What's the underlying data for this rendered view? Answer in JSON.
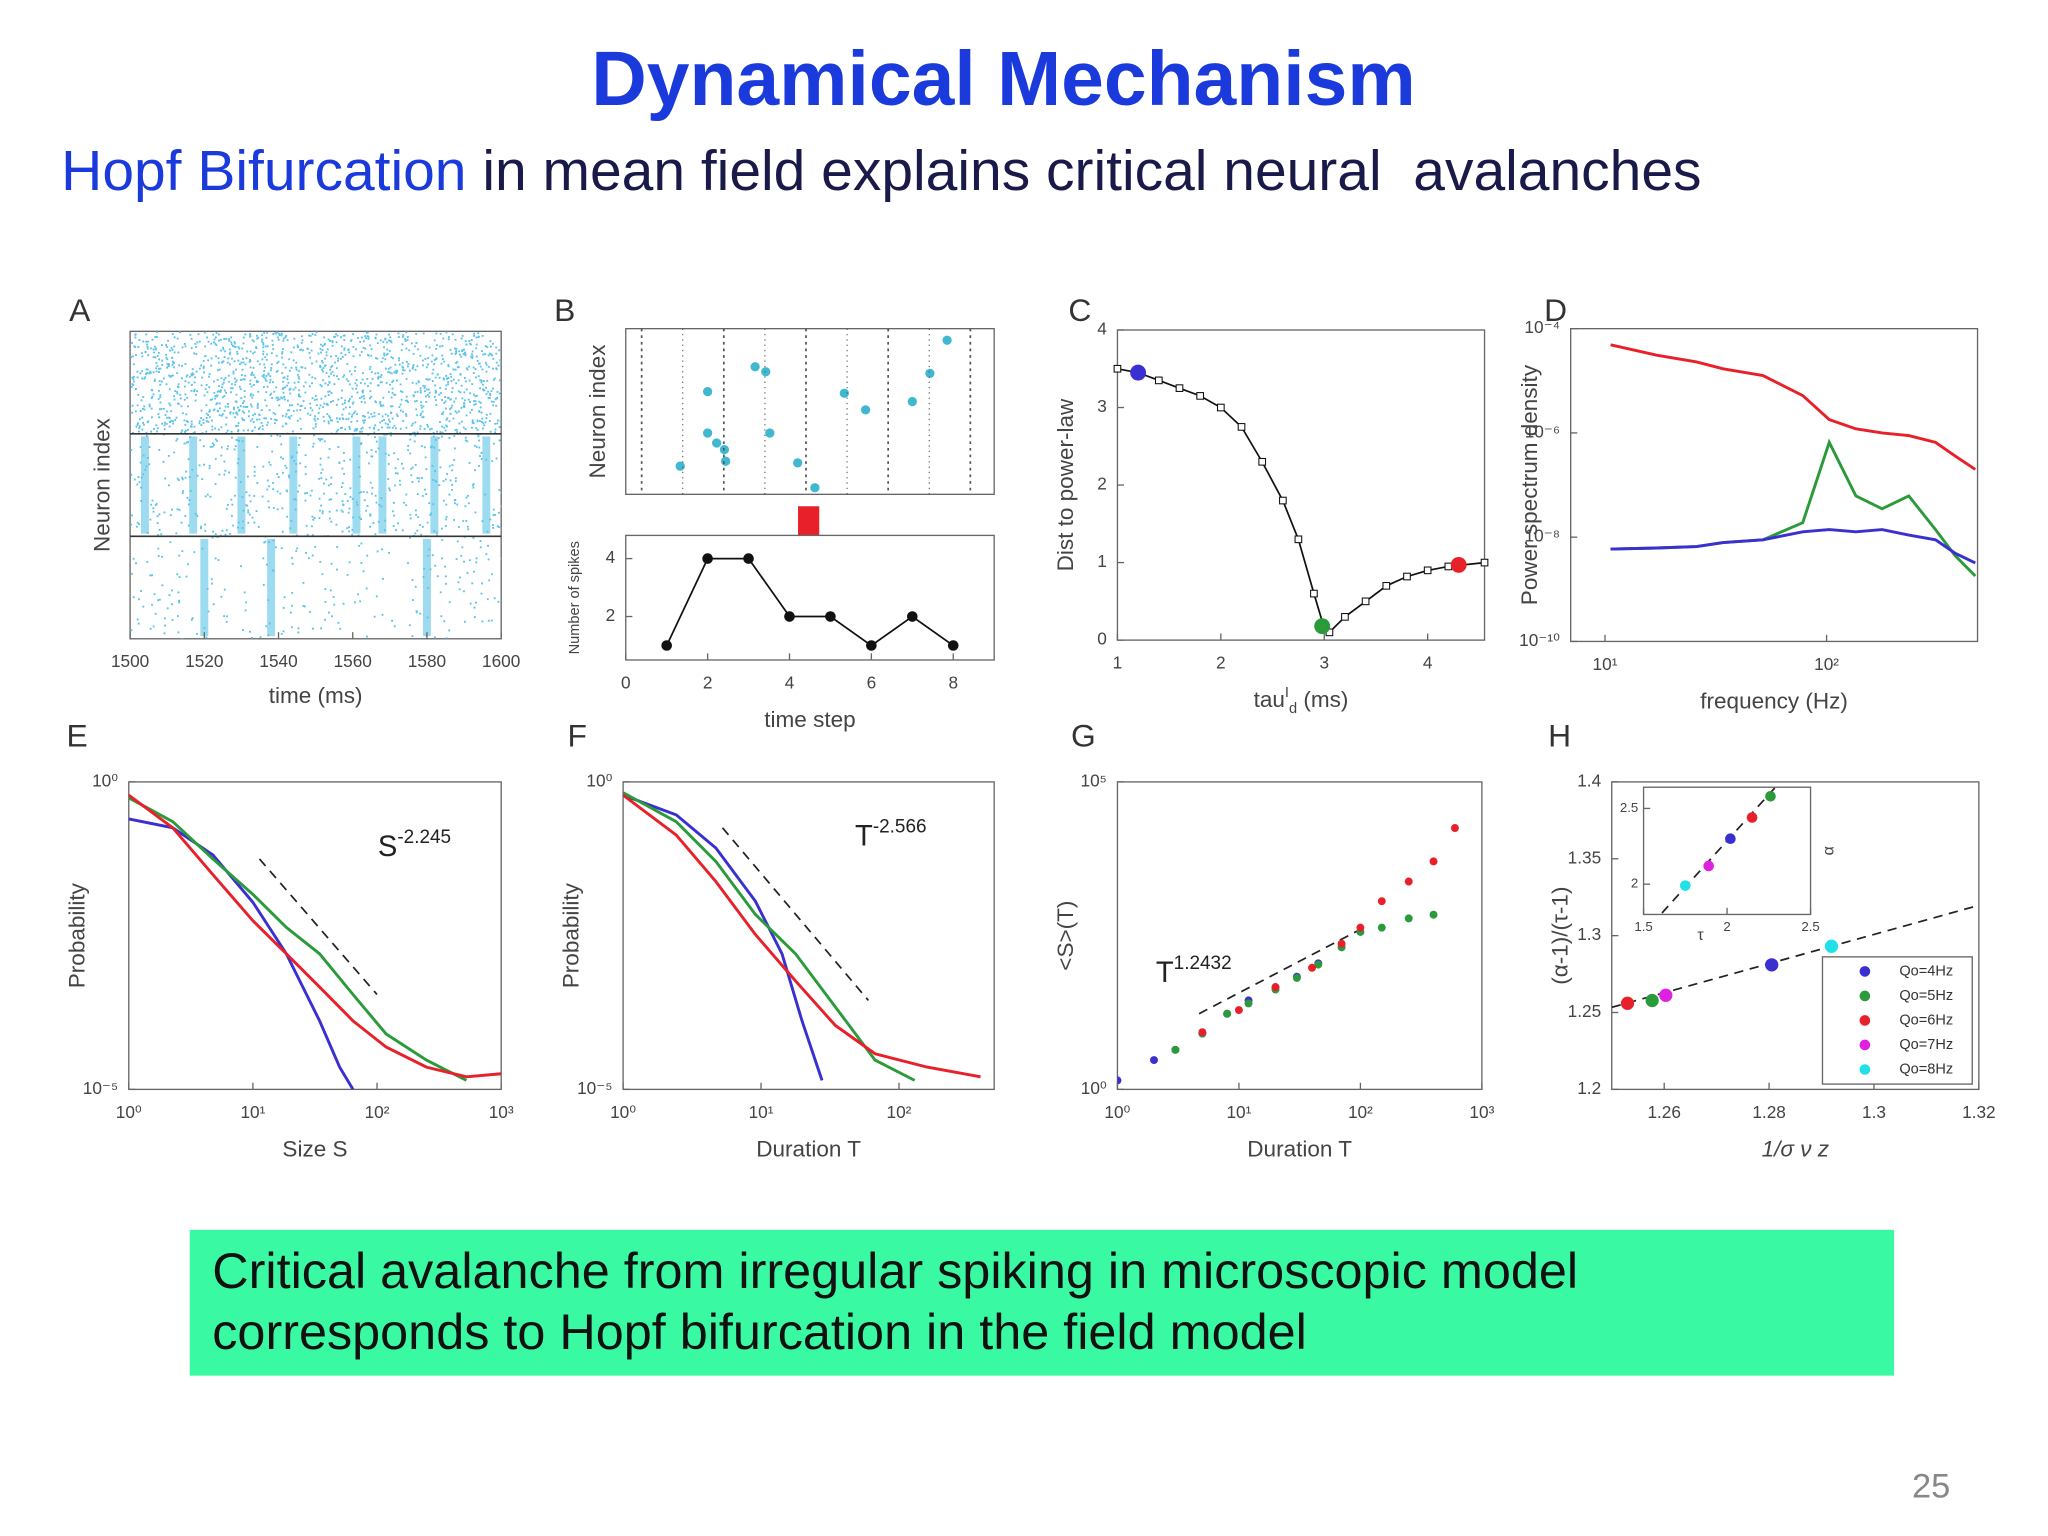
{
  "title": "Dynamical Mechanism",
  "subtitle": {
    "highlight": "Hopf Bifurcation",
    "text": " in mean field explains critical neural  avalanches"
  },
  "caption": [
    "Critical avalanche from irregular spiking in microscopic model",
    "corresponds to Hopf bifurcation in the field model"
  ],
  "page_number": "25",
  "chart_data": [
    {
      "type": "raster",
      "label": "A",
      "xlabel": "time (ms)",
      "ylabel": "Neuron index",
      "color": "#5bc3e8",
      "xlim": [
        1500,
        1600
      ],
      "xticks": [
        1500,
        1520,
        1540,
        1560,
        1580,
        1600
      ],
      "rows": [
        {
          "bursts": []
        },
        {
          "bursts": [
            1504,
            1517,
            1530,
            1544,
            1561,
            1568,
            1582,
            1596
          ]
        },
        {
          "bursts": [
            1520,
            1538,
            1580
          ]
        }
      ]
    },
    {
      "type": "scatter",
      "label": "B",
      "ylabel": "Neuron index",
      "xlim": [
        0,
        9
      ],
      "ylim": [
        0,
        1
      ],
      "series": [
        {
          "color": "#3fb8d0",
          "x": [
            1.33,
            2.0,
            2.0,
            2.22,
            2.41,
            2.44,
            3.16,
            3.42,
            3.52,
            4.2,
            4.62,
            5.34,
            5.86,
            7.0,
            7.43,
            7.85
          ],
          "values": [
            0.17,
            0.62,
            0.37,
            0.31,
            0.27,
            0.2,
            0.77,
            0.74,
            0.37,
            0.19,
            0.04,
            0.61,
            0.51,
            0.56,
            0.73,
            0.93
          ]
        }
      ]
    },
    {
      "type": "line",
      "xlabel": "time step",
      "ylabel": "Number of spikes",
      "markers": "circle",
      "xlim": [
        0,
        9
      ],
      "ylim": [
        0.5,
        4.8
      ],
      "xticks": [
        0,
        2,
        4,
        6,
        8
      ],
      "yticks": [
        2,
        4
      ],
      "series": [
        {
          "color": "#111111",
          "x": [
            1,
            2,
            3,
            4,
            5,
            6,
            7,
            8
          ],
          "values": [
            1,
            4,
            4,
            2,
            2,
            1,
            2,
            1
          ]
        }
      ]
    },
    {
      "type": "line",
      "label": "C",
      "xlabel": {
        "base": "tau",
        "sup": "I",
        "sub": "d",
        "unit": " (ms)"
      },
      "ylabel": "Dist to power-law",
      "markers": "square",
      "xlim": [
        1,
        4.55
      ],
      "ylim": [
        0,
        4
      ],
      "xticks": [
        1,
        2,
        3,
        4
      ],
      "yticks": [
        0,
        1,
        2,
        3,
        4
      ],
      "series": [
        {
          "color": "#111111",
          "x": [
            1,
            1.2,
            1.4,
            1.6,
            1.8,
            2.0,
            2.2,
            2.4,
            2.6,
            2.75,
            2.9,
            3.0,
            3.05,
            3.2,
            3.4,
            3.6,
            3.8,
            4.0,
            4.2,
            4.55
          ],
          "values": [
            3.5,
            3.45,
            3.35,
            3.25,
            3.15,
            3.0,
            2.75,
            2.3,
            1.8,
            1.3,
            0.6,
            0.15,
            0.1,
            0.3,
            0.5,
            0.7,
            0.82,
            0.9,
            0.95,
            1.0
          ]
        }
      ],
      "points": [
        {
          "color": "#3a2fd0",
          "x": 1.2,
          "value": 3.45
        },
        {
          "color": "#2a9a3a",
          "x": 2.98,
          "value": 0.18
        },
        {
          "color": "#e8202a",
          "x": 4.3,
          "value": 0.97
        }
      ]
    },
    {
      "type": "line",
      "label": "D",
      "xlabel": "frequency (Hz)",
      "ylabel": "Power spectrum density",
      "xscale": "log",
      "yscale": "log",
      "xlim": [
        7,
        480
      ],
      "ylim": [
        1e-10,
        0.0001
      ],
      "xticks": [
        {
          "value": 10,
          "label": "10¹"
        },
        {
          "value": 100,
          "label": "10²"
        }
      ],
      "yticks": [
        {
          "value": 1e-10,
          "label": "10⁻¹⁰"
        },
        {
          "value": 1e-08,
          "label": "10⁻⁸"
        },
        {
          "value": 1e-06,
          "label": "10⁻⁶"
        },
        {
          "value": 0.0001,
          "label": "10⁻⁴"
        }
      ],
      "series": [
        {
          "color": "#e8202a",
          "x": [
            10.6,
            17.1,
            25.9,
            34.1,
            51.6,
            78,
            102.8,
            135.5,
            178,
            235,
            310,
            381,
            469
          ],
          "values": [
            4.9e-05,
            3.1e-05,
            2.3e-05,
            1.7e-05,
            1.26e-05,
            5.2e-06,
            1.8e-06,
            1.2e-06,
            1e-06,
            8.9e-07,
            6.6e-07,
            3.6e-07,
            2e-07
          ]
        },
        {
          "color": "#2a9a3a",
          "x": [
            10.6,
            17.1,
            25.9,
            34.1,
            51.6,
            78,
            102.8,
            135.5,
            178,
            235,
            310,
            381,
            469
          ],
          "values": [
            5.9e-09,
            6.2e-09,
            6.6e-09,
            7.9e-09,
            8.9e-09,
            1.9e-08,
            6.6e-07,
            6.2e-08,
            3.5e-08,
            6.2e-08,
            1.4e-08,
            4.4e-09,
            1.8e-09
          ]
        },
        {
          "color": "#3a2fd0",
          "x": [
            10.6,
            17.1,
            25.9,
            34.1,
            51.6,
            78,
            102.8,
            135.5,
            178,
            235,
            310,
            381,
            469
          ],
          "values": [
            5.9e-09,
            6.2e-09,
            6.6e-09,
            7.9e-09,
            8.9e-09,
            1.27e-08,
            1.4e-08,
            1.27e-08,
            1.4e-08,
            1.1e-08,
            8.9e-09,
            4.9e-09,
            3.2e-09
          ]
        }
      ]
    },
    {
      "type": "line",
      "label": "E",
      "xlabel": "Size S",
      "ylabel": "Probability",
      "xscale": "log",
      "yscale": "log",
      "xlim": [
        1,
        1000
      ],
      "ylim": [
        1e-05,
        1
      ],
      "xticks": [
        {
          "value": 1,
          "label": "10⁰"
        },
        {
          "value": 10,
          "label": "10¹"
        },
        {
          "value": 100,
          "label": "10²"
        },
        {
          "value": 1000,
          "label": "10³"
        }
      ],
      "yticks": [
        {
          "value": 1e-05,
          "label": "10⁻⁵"
        },
        {
          "value": 1,
          "label": "10⁰"
        }
      ],
      "annotation": {
        "base": "S",
        "sup": "-2.245"
      },
      "fit": {
        "x": [
          11.3,
          100
        ],
        "values": [
          0.056,
          0.00035
        ]
      },
      "series": [
        {
          "color": "#3a2fd0",
          "x": [
            1,
            2.26,
            4.76,
            10,
            18.6,
            34.5,
            50,
            64
          ],
          "values": [
            0.25,
            0.18,
            0.065,
            0.011,
            0.0016,
            0.00013,
            2.3e-05,
            1e-05
          ]
        },
        {
          "color": "#2a9a3a",
          "x": [
            1,
            2.26,
            4.76,
            10,
            18.6,
            34.5,
            64,
            118,
            250,
            525
          ],
          "values": [
            0.55,
            0.226,
            0.056,
            0.0148,
            0.0043,
            0.0016,
            0.00035,
            8e-05,
            3e-05,
            1.4e-05
          ]
        },
        {
          "color": "#e8202a",
          "x": [
            1,
            2.26,
            4.76,
            10,
            18.6,
            34.5,
            64,
            118,
            250,
            525,
            1000
          ],
          "values": [
            0.61,
            0.18,
            0.031,
            0.0055,
            0.0016,
            0.00046,
            0.00013,
            4.9e-05,
            2.3e-05,
            1.6e-05,
            1.8e-05
          ]
        }
      ]
    },
    {
      "type": "line",
      "label": "F",
      "xlabel": "Duration T",
      "ylabel": "Probability",
      "xscale": "log",
      "yscale": "log",
      "xlim": [
        1,
        490
      ],
      "ylim": [
        1e-05,
        1
      ],
      "xticks": [
        {
          "value": 1,
          "label": "10⁰"
        },
        {
          "value": 10,
          "label": "10¹"
        },
        {
          "value": 100,
          "label": "10²"
        }
      ],
      "yticks": [
        {
          "value": 1e-05,
          "label": "10⁻⁵"
        },
        {
          "value": 1,
          "label": "10⁰"
        }
      ],
      "annotation": {
        "base": "T",
        "sup": "-2.566"
      },
      "fit": {
        "x": [
          5.25,
          60
        ],
        "values": [
          0.18,
          0.00028
        ]
      },
      "series": [
        {
          "color": "#3a2fd0",
          "x": [
            1,
            2.43,
            4.7,
            9.1,
            14.2,
            19.8,
            27.7
          ],
          "values": [
            0.61,
            0.29,
            0.084,
            0.0115,
            0.0016,
            0.00013,
            1.4e-05
          ]
        },
        {
          "color": "#2a9a3a",
          "x": [
            1,
            2.43,
            4.7,
            9.1,
            17.8,
            34.5,
            67,
            130
          ],
          "values": [
            0.67,
            0.226,
            0.051,
            0.007,
            0.0016,
            0.00022,
            3e-05,
            1.4e-05
          ]
        },
        {
          "color": "#e8202a",
          "x": [
            1,
            2.43,
            4.7,
            9.1,
            17.8,
            34.5,
            67,
            160,
            390
          ],
          "values": [
            0.61,
            0.137,
            0.024,
            0.0033,
            0.00058,
            0.00011,
            3.8e-05,
            2.3e-05,
            1.6e-05
          ]
        }
      ]
    },
    {
      "type": "scatter",
      "label": "G",
      "xlabel": "Duration T",
      "ylabel": "<S>(T)",
      "xscale": "log",
      "yscale": "log",
      "xlim": [
        1,
        1000
      ],
      "ylim": [
        1,
        100000
      ],
      "xticks": [
        {
          "value": 1,
          "label": "10⁰"
        },
        {
          "value": 10,
          "label": "10¹"
        },
        {
          "value": 100,
          "label": "10²"
        },
        {
          "value": 1000,
          "label": "10³"
        }
      ],
      "yticks": [
        {
          "value": 1,
          "label": "10⁰"
        },
        {
          "value": 100000,
          "label": "10⁵"
        }
      ],
      "annotation": {
        "base": "T",
        "sup": "1.2432"
      },
      "fit": {
        "x": [
          4.7,
          107
        ],
        "values": [
          17,
          427
        ]
      },
      "series": [
        {
          "color": "#3a2fd0",
          "x": [
            1,
            2,
            3,
            5,
            8,
            12,
            20,
            30,
            45
          ],
          "values": [
            1.4,
            3.0,
            4.4,
            8.1,
            17,
            28,
            46,
            68,
            112
          ]
        },
        {
          "color": "#2a9a3a",
          "x": [
            3,
            5,
            8,
            12,
            20,
            30,
            45,
            70,
            100,
            150,
            250,
            400
          ],
          "values": [
            4.4,
            8.1,
            17,
            25,
            42,
            65,
            107,
            204,
            363,
            427,
            603,
            692
          ]
        },
        {
          "color": "#e8202a",
          "x": [
            5,
            10,
            20,
            40,
            70,
            100,
            150,
            250,
            400,
            600
          ],
          "values": [
            8.5,
            19.5,
            46,
            95,
            234,
            427,
            1150,
            2400,
            5100,
            17800
          ]
        }
      ]
    },
    {
      "type": "scatter",
      "label": "H",
      "xlabel": "1/σ ν z",
      "ylabel": "(α-1)/(τ-1)",
      "legend": "lower right",
      "xlim": [
        1.25,
        1.32
      ],
      "ylim": [
        1.2,
        1.4
      ],
      "xticks": [
        1.26,
        1.28,
        1.3,
        1.32
      ],
      "yticks": [
        1.2,
        1.25,
        1.3,
        1.35,
        1.4
      ],
      "fit": {
        "x": [
          1.25,
          1.32
        ],
        "values": [
          1.2534,
          1.3197
        ]
      },
      "series": [
        {
          "name": "Qo=4Hz",
          "color": "#3a2fd0",
          "x": [
            1.2805
          ],
          "values": [
            1.281
          ]
        },
        {
          "name": "Qo=5Hz",
          "color": "#2a9a3a",
          "x": [
            1.2577
          ],
          "values": [
            1.2578
          ]
        },
        {
          "name": "Qo=6Hz",
          "color": "#e8202a",
          "x": [
            1.253
          ],
          "values": [
            1.256
          ]
        },
        {
          "name": "Qo=7Hz",
          "color": "#e020e0",
          "x": [
            1.2603
          ],
          "values": [
            1.2612
          ]
        },
        {
          "name": "Qo=8Hz",
          "color": "#20e0e8",
          "x": [
            1.2919
          ],
          "values": [
            1.2931
          ]
        }
      ]
    },
    {
      "type": "scatter",
      "xlabel": "τ",
      "ylabel": "α",
      "ylabel_side": "right",
      "xlim": [
        1.5,
        2.5
      ],
      "ylim": [
        1.8,
        2.64
      ],
      "xticks": [
        1.5,
        2,
        2.5
      ],
      "yticks": [
        2,
        2.5
      ],
      "fit": {
        "x": [
          1.61,
          2.29
        ],
        "values": [
          1.81,
          2.64
        ]
      },
      "series": [
        {
          "color": "#20e0e8",
          "x": [
            1.75
          ],
          "values": [
            1.99
          ]
        },
        {
          "color": "#e020e0",
          "x": [
            1.89
          ],
          "values": [
            2.12
          ]
        },
        {
          "color": "#3a2fd0",
          "x": [
            2.02
          ],
          "values": [
            2.3
          ]
        },
        {
          "color": "#e8202a",
          "x": [
            2.15
          ],
          "values": [
            2.44
          ]
        },
        {
          "color": "#2a9a3a",
          "x": [
            2.26
          ],
          "values": [
            2.58
          ]
        }
      ]
    }
  ]
}
